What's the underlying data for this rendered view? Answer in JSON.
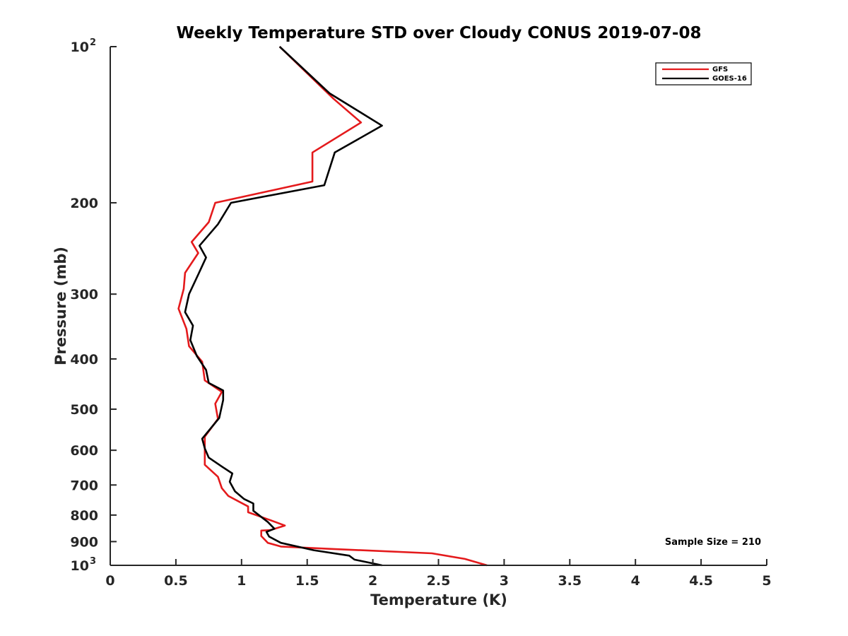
{
  "chart_data": {
    "type": "line",
    "title": "Weekly Temperature STD over Cloudy CONUS 2019-07-08",
    "xlabel": "Temperature (K)",
    "ylabel": "Pressure (mb)",
    "xlim": [
      0,
      5
    ],
    "ylim": [
      100,
      1000
    ],
    "y_scale": "log",
    "y_reversed": true,
    "x_ticks": [
      "0",
      "0.5",
      "1",
      "1.5",
      "2",
      "2.5",
      "3",
      "3.5",
      "4",
      "4.5",
      "5"
    ],
    "y_ticks": [
      {
        "value": 100,
        "base": "10",
        "exp": "2"
      },
      {
        "value": 200,
        "label": "200"
      },
      {
        "value": 300,
        "label": "300"
      },
      {
        "value": 400,
        "label": "400"
      },
      {
        "value": 500,
        "label": "500"
      },
      {
        "value": 600,
        "label": "600"
      },
      {
        "value": 700,
        "label": "700"
      },
      {
        "value": 800,
        "label": "800"
      },
      {
        "value": 900,
        "label": "900"
      },
      {
        "value": 1000,
        "base": "10",
        "exp": "3"
      }
    ],
    "grid": false,
    "legend_position": "top-right",
    "annotation": "Sample Size = 210",
    "series": [
      {
        "name": "GFS",
        "color": "#e41a1c",
        "points": [
          [
            1.29,
            100
          ],
          [
            1.7,
            126
          ],
          [
            1.91,
            140
          ],
          [
            1.54,
            160
          ],
          [
            1.54,
            182
          ],
          [
            0.8,
            200
          ],
          [
            0.75,
            218
          ],
          [
            0.62,
            238
          ],
          [
            0.67,
            250
          ],
          [
            0.57,
            273
          ],
          [
            0.56,
            293
          ],
          [
            0.52,
            320
          ],
          [
            0.58,
            350
          ],
          [
            0.6,
            378
          ],
          [
            0.7,
            405
          ],
          [
            0.72,
            440
          ],
          [
            0.85,
            463
          ],
          [
            0.8,
            488
          ],
          [
            0.82,
            522
          ],
          [
            0.72,
            565
          ],
          [
            0.72,
            605
          ],
          [
            0.72,
            640
          ],
          [
            0.82,
            675
          ],
          [
            0.85,
            710
          ],
          [
            0.9,
            735
          ],
          [
            1.05,
            770
          ],
          [
            1.05,
            790
          ],
          [
            1.2,
            815
          ],
          [
            1.33,
            838
          ],
          [
            1.22,
            855
          ],
          [
            1.15,
            857
          ],
          [
            1.15,
            878
          ],
          [
            1.2,
            905
          ],
          [
            1.3,
            920
          ],
          [
            1.7,
            930
          ],
          [
            2.45,
            948
          ],
          [
            2.7,
            972
          ],
          [
            2.87,
            1000
          ]
        ]
      },
      {
        "name": "GOES-16",
        "color": "#000000",
        "points": [
          [
            1.29,
            100
          ],
          [
            1.67,
            123
          ],
          [
            2.07,
            142
          ],
          [
            1.71,
            160
          ],
          [
            1.63,
            185
          ],
          [
            0.92,
            200
          ],
          [
            0.82,
            220
          ],
          [
            0.68,
            242
          ],
          [
            0.73,
            255
          ],
          [
            0.67,
            275
          ],
          [
            0.6,
            300
          ],
          [
            0.57,
            325
          ],
          [
            0.63,
            345
          ],
          [
            0.61,
            368
          ],
          [
            0.66,
            395
          ],
          [
            0.73,
            420
          ],
          [
            0.75,
            445
          ],
          [
            0.86,
            460
          ],
          [
            0.86,
            480
          ],
          [
            0.83,
            520
          ],
          [
            0.7,
            570
          ],
          [
            0.72,
            595
          ],
          [
            0.75,
            620
          ],
          [
            0.85,
            645
          ],
          [
            0.93,
            665
          ],
          [
            0.91,
            690
          ],
          [
            0.95,
            720
          ],
          [
            1.02,
            745
          ],
          [
            1.09,
            760
          ],
          [
            1.09,
            785
          ],
          [
            1.2,
            825
          ],
          [
            1.25,
            850
          ],
          [
            1.19,
            862
          ],
          [
            1.21,
            880
          ],
          [
            1.3,
            905
          ],
          [
            1.55,
            935
          ],
          [
            1.82,
            958
          ],
          [
            1.86,
            975
          ],
          [
            2.07,
            1000
          ]
        ]
      }
    ]
  }
}
